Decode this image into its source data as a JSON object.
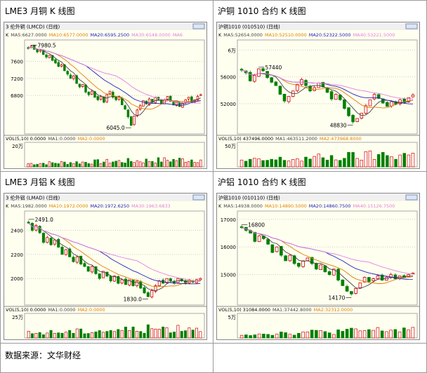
{
  "footer": {
    "source_text": "数据来源：文华财经"
  },
  "colors": {
    "panel_bg": "#fffff0",
    "toolbar_bg": "#f0f0f0",
    "grid": "#cccccc",
    "up": "#d40000",
    "down": "#008000",
    "ma5": "#444444",
    "ma10": "#e08000",
    "ma20": "#2020c0",
    "ma30": "#e080e0"
  },
  "charts": [
    {
      "panel_title": "LME3 月铜 K 线图",
      "window_title": "3 伦外铜 (LMCD) (日线)",
      "ma_line": [
        "K",
        "MA5:6627.0000",
        "MA10:6577.0000",
        "MA20:6595.2500",
        "MA30:6548.0000",
        "MA6"
      ],
      "vol_line": [
        "VOL(5,10) 0.0000",
        "MA1:0.0000",
        "MA2:0.0000"
      ],
      "vol_axis_label": "20万",
      "annotations": {
        "high": "7980.5",
        "low": "6045.0"
      },
      "chart_data": {
        "type": "candlestick",
        "yticks": [
          6800,
          7200,
          7600
        ],
        "ylim": [
          5900,
          8100
        ],
        "high_label_value": 7980.5,
        "low_label_value": 6045.0,
        "closes": [
          7900,
          7960,
          7880,
          7820,
          7860,
          7760,
          7700,
          7740,
          7620,
          7560,
          7480,
          7520,
          7380,
          7300,
          7200,
          7260,
          7080,
          7000,
          7060,
          6880,
          6820,
          6900,
          6760,
          6700,
          6780,
          6640,
          6820,
          6900,
          6760,
          6700,
          6760,
          6580,
          6480,
          6300,
          6100,
          6320,
          6460,
          6560,
          6680,
          6600,
          6720,
          6640,
          6760,
          6700,
          6620,
          6700,
          6780,
          6660,
          6580,
          6640,
          6540,
          6620,
          6700,
          6760,
          6640,
          6700,
          6780,
          6820
        ],
        "volume_level": 0.35
      }
    },
    {
      "panel_title": "沪铜 1010 合约 K 线图",
      "window_title": "沪铜1010 (010510) (日线)",
      "ma_line": [
        "K",
        "MA5:52654.0000",
        "MA10:52510.0000",
        "MA20:52322.5000",
        "MA40:53221.5000"
      ],
      "vol_line": [
        "VOL(5,10) 437496.0000",
        "MA1:463511.2000",
        "MA2:473968.8000"
      ],
      "vol_axis_label": "50万",
      "annotations": {
        "high": "57440",
        "low": "48830"
      },
      "chart_data": {
        "type": "candlestick",
        "yticks": [
          52000,
          56000,
          60000
        ],
        "yticklabels": [
          "52000",
          "56000",
          "6万"
        ],
        "ylim": [
          47500,
          61500
        ],
        "high_label_value": 57440,
        "low_label_value": 48830,
        "closes": [
          57000,
          56600,
          55400,
          56200,
          57200,
          56900,
          55900,
          55200,
          54700,
          53400,
          52400,
          53100,
          53900,
          54900,
          55600,
          54700,
          53900,
          54400,
          55100,
          54500,
          53700,
          52700,
          53400,
          52600,
          51300,
          50200,
          49300,
          49800,
          50600,
          51700,
          52600,
          53400,
          52800,
          52100,
          51600,
          52300,
          51900,
          52600,
          52200,
          52900,
          53300
        ],
        "volume_level": 0.6
      }
    },
    {
      "panel_title": "LME3 月铝 K 线图",
      "window_title": "3 伦外铝 (LMAD) (日线)",
      "ma_line": [
        "K",
        "MA5:1982.0000",
        "MA10:1972.0000",
        "MA20:1972.6250",
        "MA30:1963.6833"
      ],
      "vol_line": [
        "VOL(5,10) 0.0000",
        "MA1:0.0000",
        "MA2:0.0000"
      ],
      "vol_axis_label": "25万",
      "annotations": {
        "high": "2491.0",
        "low": "1830.0"
      },
      "chart_data": {
        "type": "candlestick",
        "yticks": [
          2000,
          2200,
          2400
        ],
        "ylim": [
          1780,
          2560
        ],
        "high_label_value": 2491.0,
        "low_label_value": 1830.0,
        "closes": [
          2460,
          2400,
          2440,
          2380,
          2300,
          2340,
          2280,
          2320,
          2260,
          2200,
          2240,
          2180,
          2140,
          2180,
          2120,
          2100,
          2060,
          2100,
          2040,
          2000,
          2060,
          2020,
          1980,
          2020,
          1960,
          1990,
          1950,
          1990,
          1940,
          1980,
          1920,
          1880,
          1850,
          1900,
          1940,
          1980,
          1960,
          2000,
          1980,
          1960,
          2000,
          1980,
          1960,
          1990,
          1970,
          1990,
          2000
        ],
        "volume_level": 0.5
      }
    },
    {
      "panel_title": "沪铝 1010 合约 K 线图",
      "window_title": "沪铝1010 (010110) (日线)",
      "ma_line": [
        "K",
        "MA5:14938.0000",
        "MA10:14890.5000",
        "MA20:14860.7500",
        "MA40:15126.7500"
      ],
      "vol_line": [
        "VOL(5,10) 31084.0000",
        "MA1:37442.8000",
        "MA2:32312.0000"
      ],
      "vol_axis_label": "5万",
      "annotations": {
        "high": "16800",
        "low": "14170"
      },
      "chart_data": {
        "type": "candlestick",
        "yticks": [
          15000,
          16000,
          17000
        ],
        "ylim": [
          13900,
          17300
        ],
        "high_label_value": 16800,
        "low_label_value": 14170,
        "closes": [
          16700,
          16600,
          16500,
          16200,
          16400,
          16300,
          16100,
          15800,
          16000,
          15700,
          15500,
          15700,
          15400,
          15300,
          15500,
          15600,
          15400,
          15200,
          15350,
          15100,
          15000,
          15200,
          14800,
          14600,
          14400,
          14300,
          14500,
          14700,
          14900,
          14750,
          14850,
          14950,
          14800,
          14900,
          15000,
          14850,
          14950,
          14900,
          15000,
          15050
        ],
        "volume_level": 0.4
      }
    }
  ]
}
